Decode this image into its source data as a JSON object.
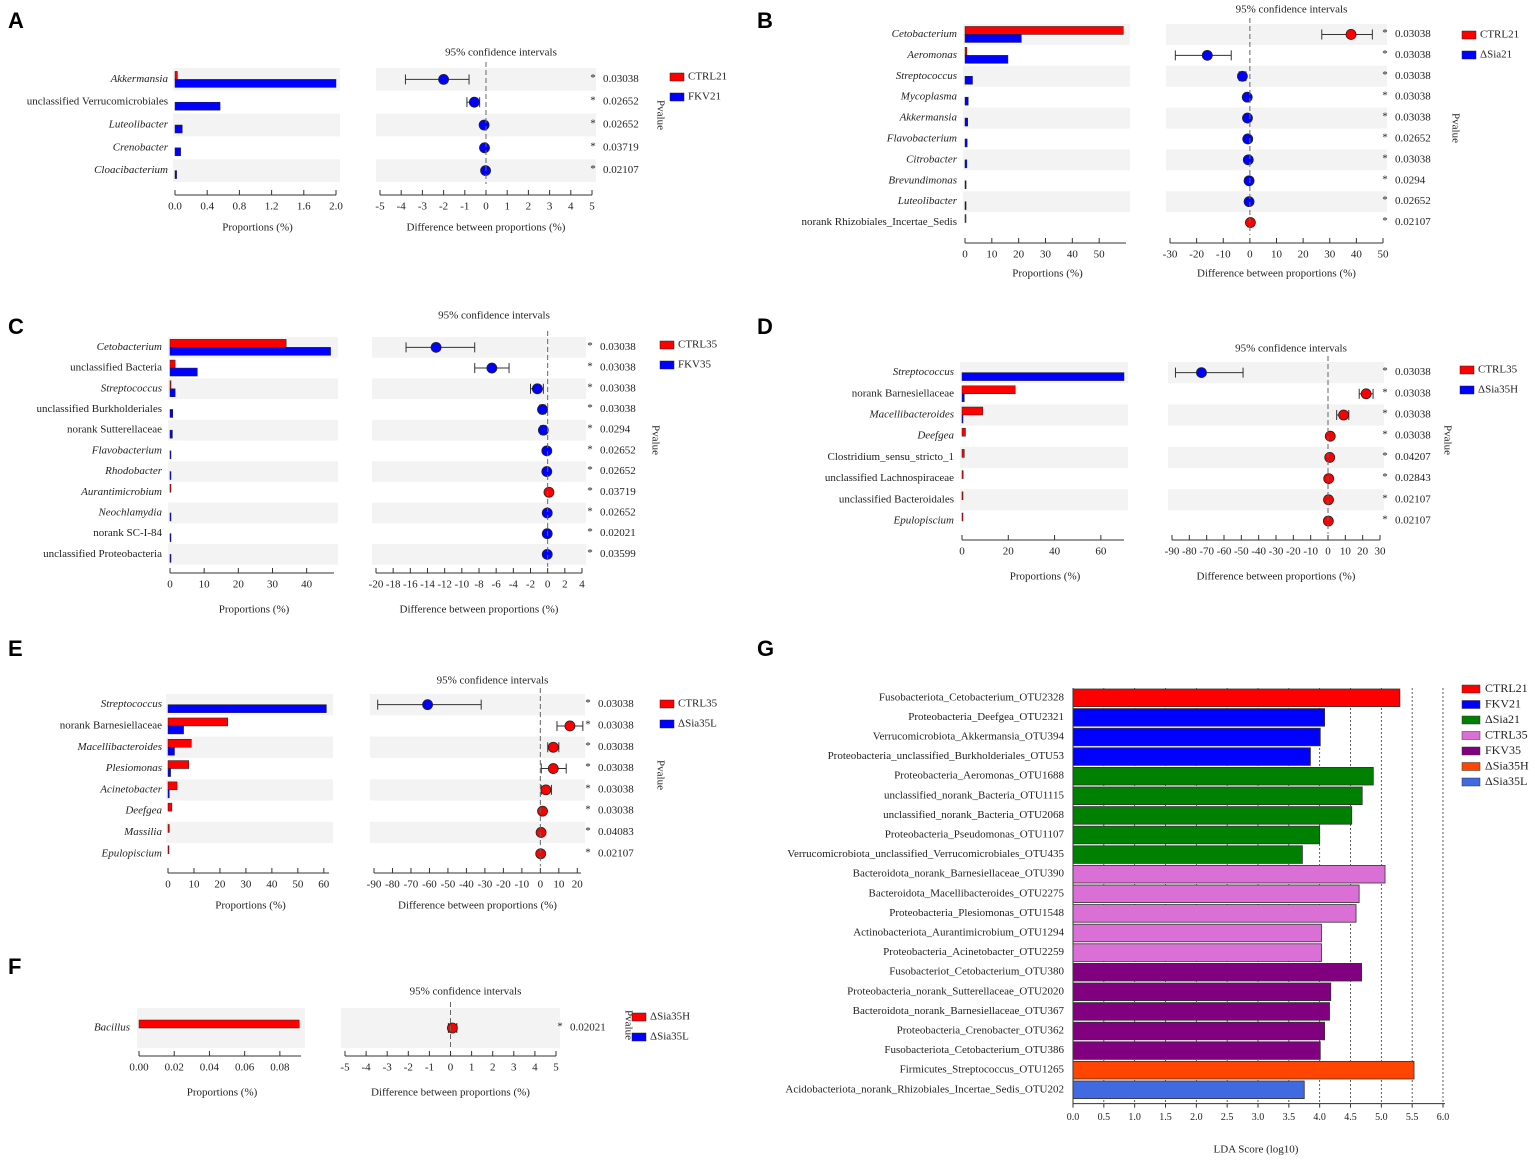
{
  "chart_data": [
    {
      "panel": "A",
      "type": "bar+errorbar",
      "title": "95% confidence intervals",
      "xlabel_left": "Proportions (%)",
      "xlabel_right": "Difference between proportions (%)",
      "pvalue_label": "Pvalue",
      "groups": [
        "CTRL21",
        "FKV21"
      ],
      "prop_ticks": [
        "0.0",
        "0.4",
        "0.8",
        "1.2",
        "1.6",
        "2.0"
      ],
      "prop_range": [
        0,
        2.0
      ],
      "diff_ticks": [
        "-5",
        "-4",
        "-3",
        "-2",
        "-1",
        "0",
        "1",
        "2",
        "3",
        "4",
        "5"
      ],
      "diff_range": [
        -5,
        5
      ],
      "rows": [
        {
          "name": "Akkermansia",
          "g1": 0.03,
          "g2": 2.0,
          "diff": -2.0,
          "lo": -3.8,
          "hi": -0.8,
          "p": "0.03038"
        },
        {
          "name": "unclassified Verrucomicrobiales",
          "g1": 0,
          "g2": 0.56,
          "diff": -0.55,
          "lo": -0.9,
          "hi": -0.3,
          "p": "0.02652"
        },
        {
          "name": "Luteolibacter",
          "g1": 0,
          "g2": 0.09,
          "diff": -0.09,
          "lo": -0.15,
          "hi": -0.03,
          "p": "0.02652"
        },
        {
          "name": "Crenobacter",
          "g1": 0,
          "g2": 0.07,
          "diff": -0.07,
          "lo": -0.12,
          "hi": -0.02,
          "p": "0.03719"
        },
        {
          "name": "Cloacibacterium",
          "g1": 0,
          "g2": 0.02,
          "diff": -0.02,
          "lo": -0.05,
          "hi": 0,
          "p": "0.02107"
        }
      ]
    },
    {
      "panel": "B",
      "type": "bar+errorbar",
      "title": "95% confidence intervals",
      "xlabel_left": "Proportions (%)",
      "xlabel_right": "Difference between proportions (%)",
      "pvalue_label": "Pvalue",
      "groups": [
        "CTRL21",
        "ΔSia21"
      ],
      "prop_ticks": [
        "0",
        "10",
        "20",
        "30",
        "40",
        "50"
      ],
      "prop_range": [
        0,
        60
      ],
      "diff_ticks": [
        "-30",
        "-20",
        "-10",
        "0",
        "10",
        "20",
        "30",
        "40",
        "50"
      ],
      "diff_range": [
        -30,
        50
      ],
      "rows": [
        {
          "name": "Cetobacterium",
          "g1": 59,
          "g2": 21,
          "diff": 38,
          "lo": 27,
          "hi": 46,
          "p": "0.03038"
        },
        {
          "name": "Aeromonas",
          "g1": 0.7,
          "g2": 16,
          "diff": -16,
          "lo": -28,
          "hi": -7,
          "p": "0.03038"
        },
        {
          "name": "Streptococcus",
          "g1": 0,
          "g2": 2.8,
          "diff": -2.8,
          "lo": -4,
          "hi": -1.5,
          "p": "0.03038"
        },
        {
          "name": "Mycoplasma",
          "g1": 0,
          "g2": 1.2,
          "diff": -1.0,
          "lo": -1.5,
          "hi": -0.5,
          "p": "0.03038"
        },
        {
          "name": "Akkermansia",
          "g1": 0,
          "g2": 1.0,
          "diff": -0.9,
          "lo": -1.3,
          "hi": -0.4,
          "p": "0.03038"
        },
        {
          "name": "Flavobacterium",
          "g1": 0,
          "g2": 0.8,
          "diff": -0.8,
          "lo": -1.2,
          "hi": -0.4,
          "p": "0.02652"
        },
        {
          "name": "Citrobacter",
          "g1": 0,
          "g2": 0.7,
          "diff": -0.6,
          "lo": -1.0,
          "hi": -0.3,
          "p": "0.03038"
        },
        {
          "name": "Brevundimonas",
          "g1": 0,
          "g2": 0.4,
          "diff": -0.3,
          "lo": -0.5,
          "hi": -0.1,
          "p": "0.0294"
        },
        {
          "name": "Luteolibacter",
          "g1": 0,
          "g2": 0.4,
          "diff": -0.3,
          "lo": -0.5,
          "hi": -0.1,
          "p": "0.02652"
        },
        {
          "name": "norank Rhizobiales_Incertae_Sedis",
          "g1": 0.2,
          "g2": 0,
          "diff": 0.2,
          "lo": 0.05,
          "hi": 0.35,
          "p": "0.02107"
        }
      ]
    },
    {
      "panel": "C",
      "type": "bar+errorbar",
      "title": "95% confidence intervals",
      "xlabel_left": "Proportions (%)",
      "xlabel_right": "Difference between proportions (%)",
      "pvalue_label": "Pvalue",
      "groups": [
        "CTRL35",
        "FKV35"
      ],
      "prop_ticks": [
        "0",
        "10",
        "20",
        "30",
        "40"
      ],
      "prop_range": [
        0,
        48
      ],
      "diff_ticks": [
        "-20",
        "-18",
        "-16",
        "-14",
        "-12",
        "-10",
        "-8",
        "-6",
        "-4",
        "-2",
        "0",
        "2",
        "4"
      ],
      "diff_range": [
        -20,
        4
      ],
      "rows": [
        {
          "name": "Cetobacterium",
          "g1": 34,
          "g2": 47,
          "diff": -13,
          "lo": -16.5,
          "hi": -8.5,
          "p": "0.03038"
        },
        {
          "name": "unclassified Bacteria",
          "g1": 1.5,
          "g2": 8,
          "diff": -6.5,
          "lo": -8.5,
          "hi": -4.5,
          "p": "0.03038"
        },
        {
          "name": "Streptococcus",
          "g1": 0.2,
          "g2": 1.5,
          "diff": -1.2,
          "lo": -2,
          "hi": -0.5,
          "p": "0.03038"
        },
        {
          "name": "unclassified Burkholderiales",
          "g1": 0,
          "g2": 0.8,
          "diff": -0.6,
          "lo": -0.9,
          "hi": -0.3,
          "p": "0.03038"
        },
        {
          "name": "norank Sutterellaceae",
          "g1": 0,
          "g2": 0.7,
          "diff": -0.5,
          "lo": -0.8,
          "hi": -0.2,
          "p": "0.0294"
        },
        {
          "name": "Flavobacterium",
          "g1": 0,
          "g2": 0.2,
          "diff": -0.1,
          "lo": -0.2,
          "hi": 0,
          "p": "0.02652"
        },
        {
          "name": "Rhodobacter",
          "g1": 0,
          "g2": 0.2,
          "diff": -0.1,
          "lo": -0.2,
          "hi": 0,
          "p": "0.02652"
        },
        {
          "name": "Aurantimicrobium",
          "g1": 0.2,
          "g2": 0,
          "diff": 0.15,
          "lo": 0.05,
          "hi": 0.25,
          "p": "0.03719"
        },
        {
          "name": "Neochlamydia",
          "g1": 0,
          "g2": 0.1,
          "diff": -0.05,
          "lo": -0.1,
          "hi": 0,
          "p": "0.02652"
        },
        {
          "name": "norank SC-I-84",
          "g1": 0,
          "g2": 0.1,
          "diff": -0.05,
          "lo": -0.1,
          "hi": 0,
          "p": "0.02021"
        },
        {
          "name": "unclassified Proteobacteria",
          "g1": 0,
          "g2": 0.1,
          "diff": -0.05,
          "lo": -0.1,
          "hi": 0,
          "p": "0.03599"
        }
      ]
    },
    {
      "panel": "D",
      "type": "bar+errorbar",
      "title": "95% confidence intervals",
      "xlabel_left": "Proportions (%)",
      "xlabel_right": "Difference between proportions (%)",
      "pvalue_label": "Pvalue",
      "groups": [
        "CTRL35",
        "ΔSia35H"
      ],
      "prop_ticks": [
        "0",
        "20",
        "40",
        "60"
      ],
      "prop_range": [
        0,
        70
      ],
      "diff_ticks": [
        "-90",
        "-80",
        "-70",
        "-60",
        "-50",
        "-40",
        "-30",
        "-20",
        "-10",
        "0",
        "10",
        "20",
        "30"
      ],
      "diff_range": [
        -90,
        30
      ],
      "rows": [
        {
          "name": "Streptococcus",
          "g1": 0,
          "g2": 70,
          "diff": -73,
          "lo": -88,
          "hi": -49,
          "p": "0.03038"
        },
        {
          "name": "norank Barnesiellaceae",
          "g1": 23,
          "g2": 1,
          "diff": 22,
          "lo": 18,
          "hi": 26,
          "p": "0.03038"
        },
        {
          "name": "Macellibacteroides",
          "g1": 9,
          "g2": 0.2,
          "diff": 9,
          "lo": 5,
          "hi": 12,
          "p": "0.03038"
        },
        {
          "name": "Deefgea",
          "g1": 1.5,
          "g2": 0,
          "diff": 1.3,
          "lo": 0.5,
          "hi": 2,
          "p": "0.03038"
        },
        {
          "name": "Clostridium_sensu_stricto_1",
          "g1": 1,
          "g2": 0,
          "diff": 1,
          "lo": 0.3,
          "hi": 1.6,
          "p": "0.04207"
        },
        {
          "name": "unclassified Lachnospiraceae",
          "g1": 0.5,
          "g2": 0,
          "diff": 0.4,
          "lo": 0.1,
          "hi": 0.7,
          "p": "0.02843"
        },
        {
          "name": "unclassified Bacteroidales",
          "g1": 0.3,
          "g2": 0,
          "diff": 0.3,
          "lo": 0.1,
          "hi": 0.5,
          "p": "0.02107"
        },
        {
          "name": "Epulopiscium",
          "g1": 0.2,
          "g2": 0,
          "diff": 0.2,
          "lo": 0.05,
          "hi": 0.35,
          "p": "0.02107"
        }
      ]
    },
    {
      "panel": "E",
      "type": "bar+errorbar",
      "title": "95% confidence intervals",
      "xlabel_left": "Proportions (%)",
      "xlabel_right": "Difference between proportions (%)",
      "pvalue_label": "Pvalue",
      "groups": [
        "CTRL35",
        "ΔSia35L"
      ],
      "prop_ticks": [
        "0",
        "10",
        "20",
        "30",
        "40",
        "50",
        "60"
      ],
      "prop_range": [
        0,
        62
      ],
      "diff_ticks": [
        "-90",
        "-80",
        "-70",
        "-60",
        "-50",
        "-40",
        "-30",
        "-20",
        "-10",
        "0",
        "10",
        "20"
      ],
      "diff_range": [
        -90,
        22
      ],
      "rows": [
        {
          "name": "Streptococcus",
          "g1": 0,
          "g2": 61,
          "diff": -61,
          "lo": -88,
          "hi": -32,
          "p": "0.03038"
        },
        {
          "name": "norank Barnesiellaceae",
          "g1": 23,
          "g2": 6,
          "diff": 16,
          "lo": 9,
          "hi": 23,
          "p": "0.03038"
        },
        {
          "name": "Macellibacteroides",
          "g1": 9,
          "g2": 2.5,
          "diff": 7,
          "lo": 4,
          "hi": 10,
          "p": "0.03038"
        },
        {
          "name": "Plesiomonas",
          "g1": 8,
          "g2": 1,
          "diff": 7,
          "lo": 0.5,
          "hi": 14,
          "p": "0.03038"
        },
        {
          "name": "Acinetobacter",
          "g1": 3.5,
          "g2": 0.5,
          "diff": 3,
          "lo": 0.5,
          "hi": 6,
          "p": "0.03038"
        },
        {
          "name": "Deefgea",
          "g1": 1.5,
          "g2": 0,
          "diff": 1.2,
          "lo": 0.4,
          "hi": 2,
          "p": "0.03038"
        },
        {
          "name": "Massilia",
          "g1": 0.5,
          "g2": 0,
          "diff": 0.4,
          "lo": 0.1,
          "hi": 0.7,
          "p": "0.04083"
        },
        {
          "name": "Epulopiscium",
          "g1": 0.2,
          "g2": 0,
          "diff": 0.2,
          "lo": 0.05,
          "hi": 0.35,
          "p": "0.02107"
        }
      ]
    },
    {
      "panel": "F",
      "type": "bar+errorbar",
      "title": "95% confidence intervals",
      "xlabel_left": "Proportions (%)",
      "xlabel_right": "Difference between proportions (%)",
      "pvalue_label": "Pvalue",
      "groups": [
        "ΔSia35H",
        "ΔSia35L"
      ],
      "prop_ticks": [
        "0.00",
        "0.02",
        "0.04",
        "0.06",
        "0.08"
      ],
      "prop_range": [
        0,
        0.092
      ],
      "diff_ticks": [
        "-5",
        "-4",
        "-3",
        "-2",
        "-1",
        "0",
        "1",
        "2",
        "3",
        "4",
        "5"
      ],
      "diff_range": [
        -5,
        5
      ],
      "rows": [
        {
          "name": "Bacillus",
          "g1": 0.091,
          "g2": 0,
          "diff": 0.09,
          "lo": -0.1,
          "hi": 0.3,
          "p": "0.02021"
        }
      ]
    },
    {
      "panel": "G",
      "type": "bar",
      "xlabel": "LDA Score (log10)",
      "xlim": [
        0,
        6.0
      ],
      "ticks": [
        "0.0",
        "0.5",
        "1.0",
        "1.5",
        "2.0",
        "2.5",
        "3.0",
        "3.5",
        "4.0",
        "4.5",
        "5.0",
        "5.5",
        "6.0"
      ],
      "legend": [
        {
          "name": "CTRL21",
          "color": "#ff0000"
        },
        {
          "name": "FKV21",
          "color": "#0000ff"
        },
        {
          "name": "ΔSia21",
          "color": "#008000"
        },
        {
          "name": "CTRL35",
          "color": "#da70d6"
        },
        {
          "name": "FKV35",
          "color": "#800080"
        },
        {
          "name": "ΔSia35H",
          "color": "#ff4500"
        },
        {
          "name": "ΔSia35L",
          "color": "#4169e1"
        }
      ],
      "bars": [
        {
          "name": "Fusobacteriota_Cetobacterium_OTU2328",
          "value": 5.3,
          "group": 0
        },
        {
          "name": "Proteobacteria_Deefgea_OTU2321",
          "value": 4.08,
          "group": 1
        },
        {
          "name": "Verrucomicrobiota_Akkermansia_OTU394",
          "value": 4.01,
          "group": 1
        },
        {
          "name": "Proteobacteria_unclassified_Burkholderiales_OTU53",
          "value": 3.85,
          "group": 1
        },
        {
          "name": "Proteobacteria_Aeromonas_OTU1688",
          "value": 4.87,
          "group": 2
        },
        {
          "name": "unclassified_norank_Bacteria_OTU1115",
          "value": 4.69,
          "group": 2
        },
        {
          "name": "unclassified_norank_Bacteria_OTU2068",
          "value": 4.52,
          "group": 2
        },
        {
          "name": "Proteobacteria_Pseudomonas_OTU1107",
          "value": 4.0,
          "group": 2
        },
        {
          "name": "Verrucomicrobiota_unclassified_Verrucomicrobiales_OTU435",
          "value": 3.72,
          "group": 2
        },
        {
          "name": "Bacteroidota_norank_Barnesiellaceae_OTU390",
          "value": 5.06,
          "group": 3
        },
        {
          "name": "Bacteroidota_Macellibacteroides_OTU2275",
          "value": 4.64,
          "group": 3
        },
        {
          "name": "Proteobacteria_Plesiomonas_OTU1548",
          "value": 4.59,
          "group": 3
        },
        {
          "name": "Actinobacteriota_Aurantimicrobium_OTU1294",
          "value": 4.03,
          "group": 3
        },
        {
          "name": "Proteobacteria_Acinetobacter_OTU2259",
          "value": 4.03,
          "group": 3
        },
        {
          "name": "Fusobacteriot_Cetobacterium_OTU380",
          "value": 4.68,
          "group": 4
        },
        {
          "name": "Proteobacteria_norank_Sutterellaceae_OTU2020",
          "value": 4.18,
          "group": 4
        },
        {
          "name": "Bacteroidota_norank_Barnesiellaceae_OTU367",
          "value": 4.16,
          "group": 4
        },
        {
          "name": "Proteobacteria_Crenobacter_OTU362",
          "value": 4.08,
          "group": 4
        },
        {
          "name": "Fusobacteriota_Cetobacterium_OTU386",
          "value": 4.01,
          "group": 4
        },
        {
          "name": "Firmicutes_Streptococcus_OTU1265",
          "value": 5.53,
          "group": 5
        },
        {
          "name": "Acidobacteriota_norank_Rhizobiales_Incertae_Sedis_OTU202",
          "value": 3.75,
          "group": 6
        }
      ]
    }
  ],
  "colors": {
    "group1": "#ff0000",
    "group2": "#0000ff",
    "stripe": "#f3f3f3",
    "star": "#ff6b6b"
  }
}
